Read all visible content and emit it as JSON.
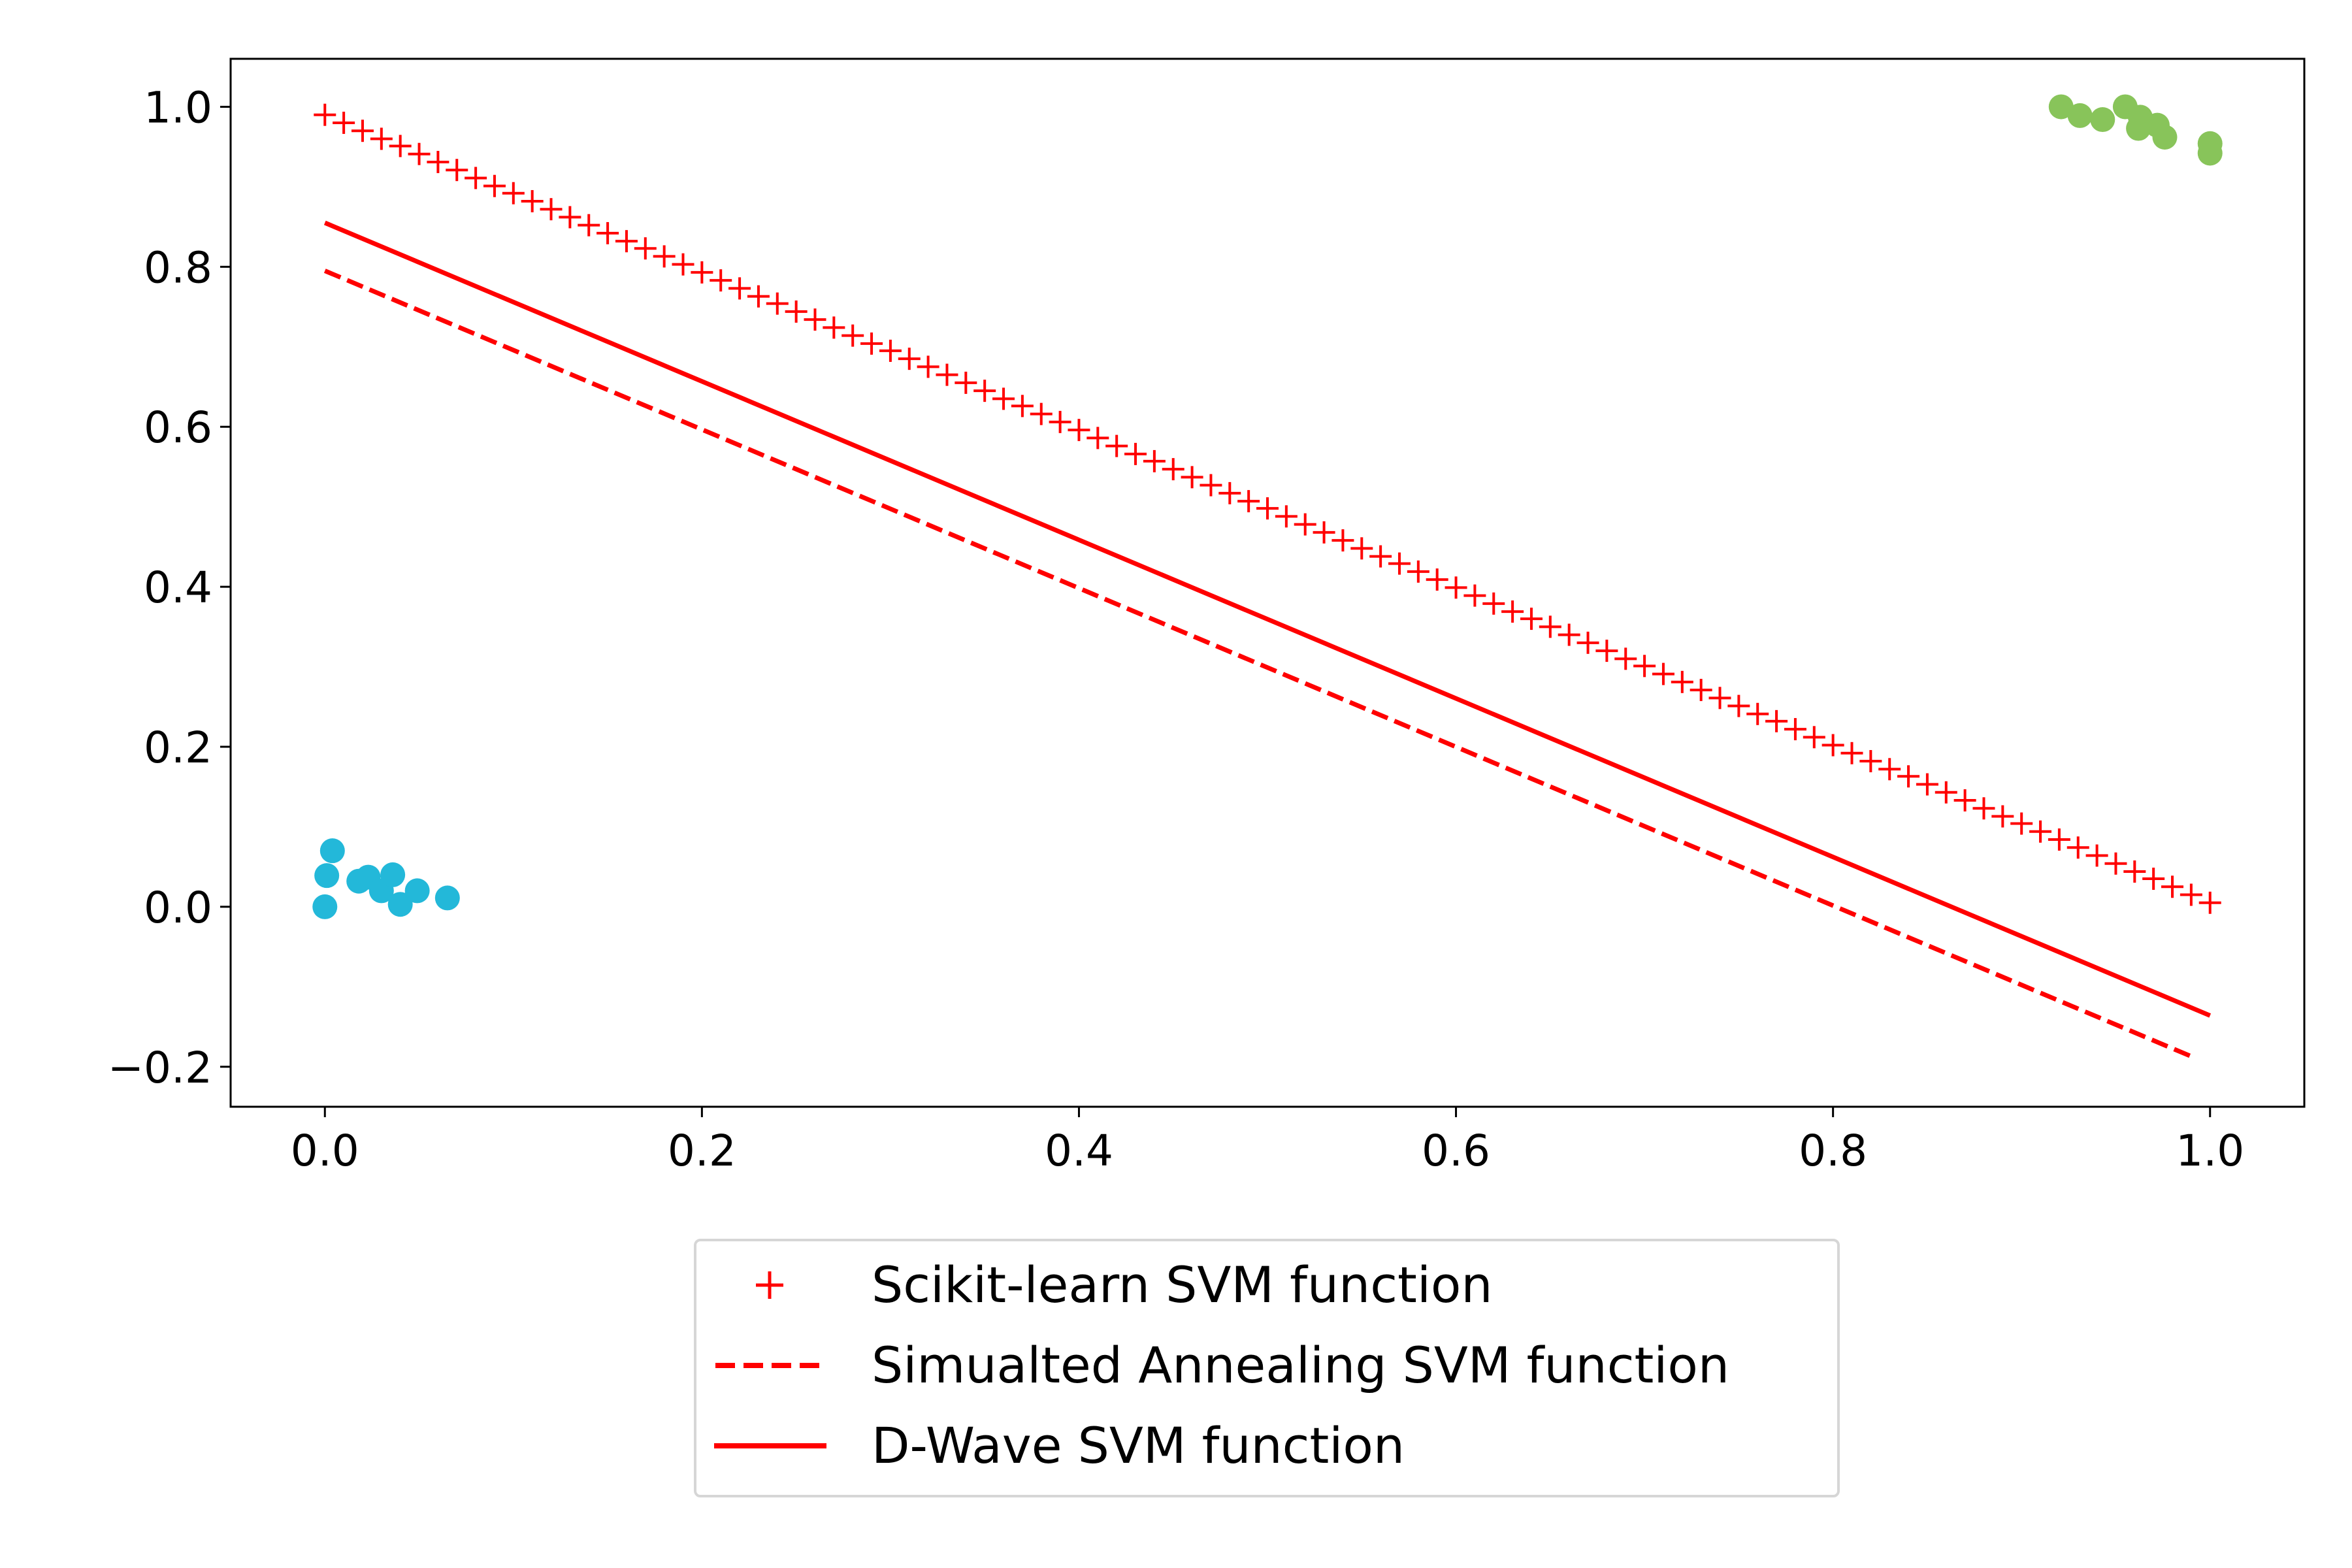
{
  "chart_data": {
    "type": "scatter",
    "title": "",
    "xlabel": "",
    "ylabel": "",
    "xlim": [
      -0.05,
      1.05
    ],
    "ylim": [
      -0.25,
      1.06
    ],
    "xticks": [
      0.0,
      0.2,
      0.4,
      0.6,
      0.8,
      1.0
    ],
    "xtick_labels": [
      "0.0",
      "0.2",
      "0.4",
      "0.6",
      "0.8",
      "1.0"
    ],
    "yticks": [
      -0.2,
      0.0,
      0.2,
      0.4,
      0.6,
      0.8,
      1.0
    ],
    "ytick_labels": [
      "−0.2",
      "0.0",
      "0.2",
      "0.4",
      "0.6",
      "0.8",
      "1.0"
    ],
    "grid": false,
    "legend_placement": "below plot, centered",
    "scatter_groups": [
      {
        "color": "#23b8d9",
        "points": [
          [
            0.004,
            0.07
          ],
          [
            0.001,
            0.039
          ],
          [
            0.0,
            0.0
          ],
          [
            0.018,
            0.032
          ],
          [
            0.023,
            0.037
          ],
          [
            0.03,
            0.02
          ],
          [
            0.036,
            0.04
          ],
          [
            0.04,
            0.003
          ],
          [
            0.049,
            0.02
          ],
          [
            0.065,
            0.011
          ]
        ]
      },
      {
        "color": "#88c45a",
        "points": [
          [
            0.921,
            1.0
          ],
          [
            0.931,
            0.989
          ],
          [
            0.943,
            0.984
          ],
          [
            0.955,
            1.0
          ],
          [
            0.963,
            0.987
          ],
          [
            0.962,
            0.973
          ],
          [
            0.972,
            0.977
          ],
          [
            0.976,
            0.962
          ],
          [
            1.0,
            0.954
          ],
          [
            1.0,
            0.942
          ]
        ]
      }
    ],
    "series": [
      {
        "name": "Scikit-learn SVM function",
        "style": "plus-markers",
        "color": "#ff0000",
        "x": [
          0,
          0.01,
          0.02,
          0.03,
          0.04,
          0.05,
          0.06,
          0.07,
          0.08,
          0.09,
          0.1,
          0.11,
          0.12,
          0.13,
          0.14,
          0.15,
          0.16,
          0.17,
          0.18,
          0.19,
          0.2,
          0.21,
          0.22,
          0.23,
          0.24,
          0.25,
          0.26,
          0.27,
          0.28,
          0.29,
          0.3,
          0.31,
          0.32,
          0.33,
          0.34,
          0.35,
          0.36,
          0.37,
          0.38,
          0.39,
          0.4,
          0.41,
          0.42,
          0.43,
          0.44,
          0.45,
          0.46,
          0.47,
          0.48,
          0.49,
          0.5,
          0.51,
          0.52,
          0.53,
          0.54,
          0.55,
          0.56,
          0.57,
          0.58,
          0.59,
          0.6,
          0.61,
          0.62,
          0.63,
          0.64,
          0.65,
          0.66,
          0.67,
          0.68,
          0.69,
          0.7,
          0.71,
          0.72,
          0.73,
          0.74,
          0.75,
          0.76,
          0.77,
          0.78,
          0.79,
          0.8,
          0.81,
          0.82,
          0.83,
          0.84,
          0.85,
          0.86,
          0.87,
          0.88,
          0.89,
          0.9,
          0.91,
          0.92,
          0.93,
          0.94,
          0.95,
          0.96,
          0.97,
          0.98,
          0.99,
          1.0
        ],
        "y": [
          0.99,
          0.98,
          0.97,
          0.96,
          0.951,
          0.941,
          0.931,
          0.921,
          0.911,
          0.901,
          0.892,
          0.882,
          0.872,
          0.862,
          0.852,
          0.842,
          0.832,
          0.823,
          0.813,
          0.803,
          0.793,
          0.783,
          0.773,
          0.763,
          0.754,
          0.744,
          0.734,
          0.724,
          0.714,
          0.704,
          0.695,
          0.685,
          0.675,
          0.665,
          0.655,
          0.645,
          0.635,
          0.626,
          0.616,
          0.606,
          0.596,
          0.586,
          0.576,
          0.566,
          0.557,
          0.547,
          0.537,
          0.527,
          0.517,
          0.507,
          0.498,
          0.488,
          0.478,
          0.468,
          0.458,
          0.448,
          0.438,
          0.429,
          0.419,
          0.409,
          0.399,
          0.389,
          0.379,
          0.369,
          0.36,
          0.35,
          0.34,
          0.33,
          0.32,
          0.31,
          0.301,
          0.291,
          0.281,
          0.271,
          0.261,
          0.251,
          0.241,
          0.232,
          0.222,
          0.212,
          0.202,
          0.192,
          0.182,
          0.172,
          0.163,
          0.153,
          0.143,
          0.133,
          0.123,
          0.113,
          0.104,
          0.094,
          0.084,
          0.074,
          0.064,
          0.054,
          0.044,
          0.035,
          0.025,
          0.015,
          0.005
        ]
      },
      {
        "name": "Simualted Annealing SVM function",
        "style": "dashed",
        "color": "#ff0000",
        "x": [
          0.0,
          0.99
        ],
        "y": [
          0.795,
          -0.187
        ]
      },
      {
        "name": "D-Wave SVM function",
        "style": "solid",
        "color": "#ff0000",
        "x": [
          0.0,
          1.0
        ],
        "y": [
          0.855,
          -0.136
        ]
      }
    ]
  }
}
